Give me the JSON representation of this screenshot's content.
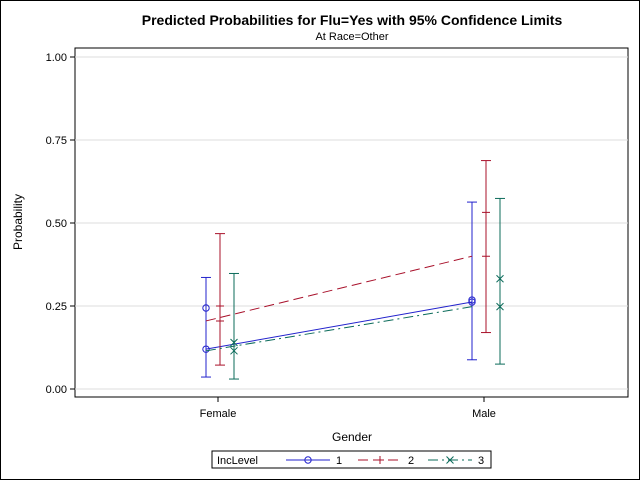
{
  "chart_data": {
    "type": "line",
    "title": "Predicted Probabilities for Flu=Yes with 95% Confidence Limits",
    "subtitle": "At Race=Other",
    "xlabel": "Gender",
    "ylabel": "Probability",
    "categories": [
      "Female",
      "Male"
    ],
    "ylim": [
      0,
      1
    ],
    "yticks": [
      "0.00",
      "0.25",
      "0.50",
      "0.75",
      "1.00"
    ],
    "grid": true,
    "legend": {
      "title": "IncLevel",
      "placement": "bottom"
    },
    "series": [
      {
        "name": "1",
        "color": "#2222cc",
        "marker": "circle",
        "dash": "solid",
        "values": [
          0.12,
          0.262
        ],
        "extra_points": [
          0.244,
          0.268
        ],
        "lower": [
          0.036,
          0.088
        ],
        "upper": [
          0.336,
          0.563
        ]
      },
      {
        "name": "2",
        "color": "#a8102a",
        "marker": "plus",
        "dash": "long",
        "values": [
          0.205,
          0.4
        ],
        "extra_points": [
          0.25,
          0.532
        ],
        "lower": [
          0.072,
          0.17
        ],
        "upper": [
          0.468,
          0.688
        ]
      },
      {
        "name": "3",
        "color": "#0b6b5a",
        "marker": "x",
        "dash": "dashdot",
        "values": [
          0.115,
          0.248
        ],
        "extra_points": [
          0.14,
          0.332
        ],
        "lower": [
          0.03,
          0.075
        ],
        "upper": [
          0.348,
          0.574
        ]
      }
    ]
  }
}
